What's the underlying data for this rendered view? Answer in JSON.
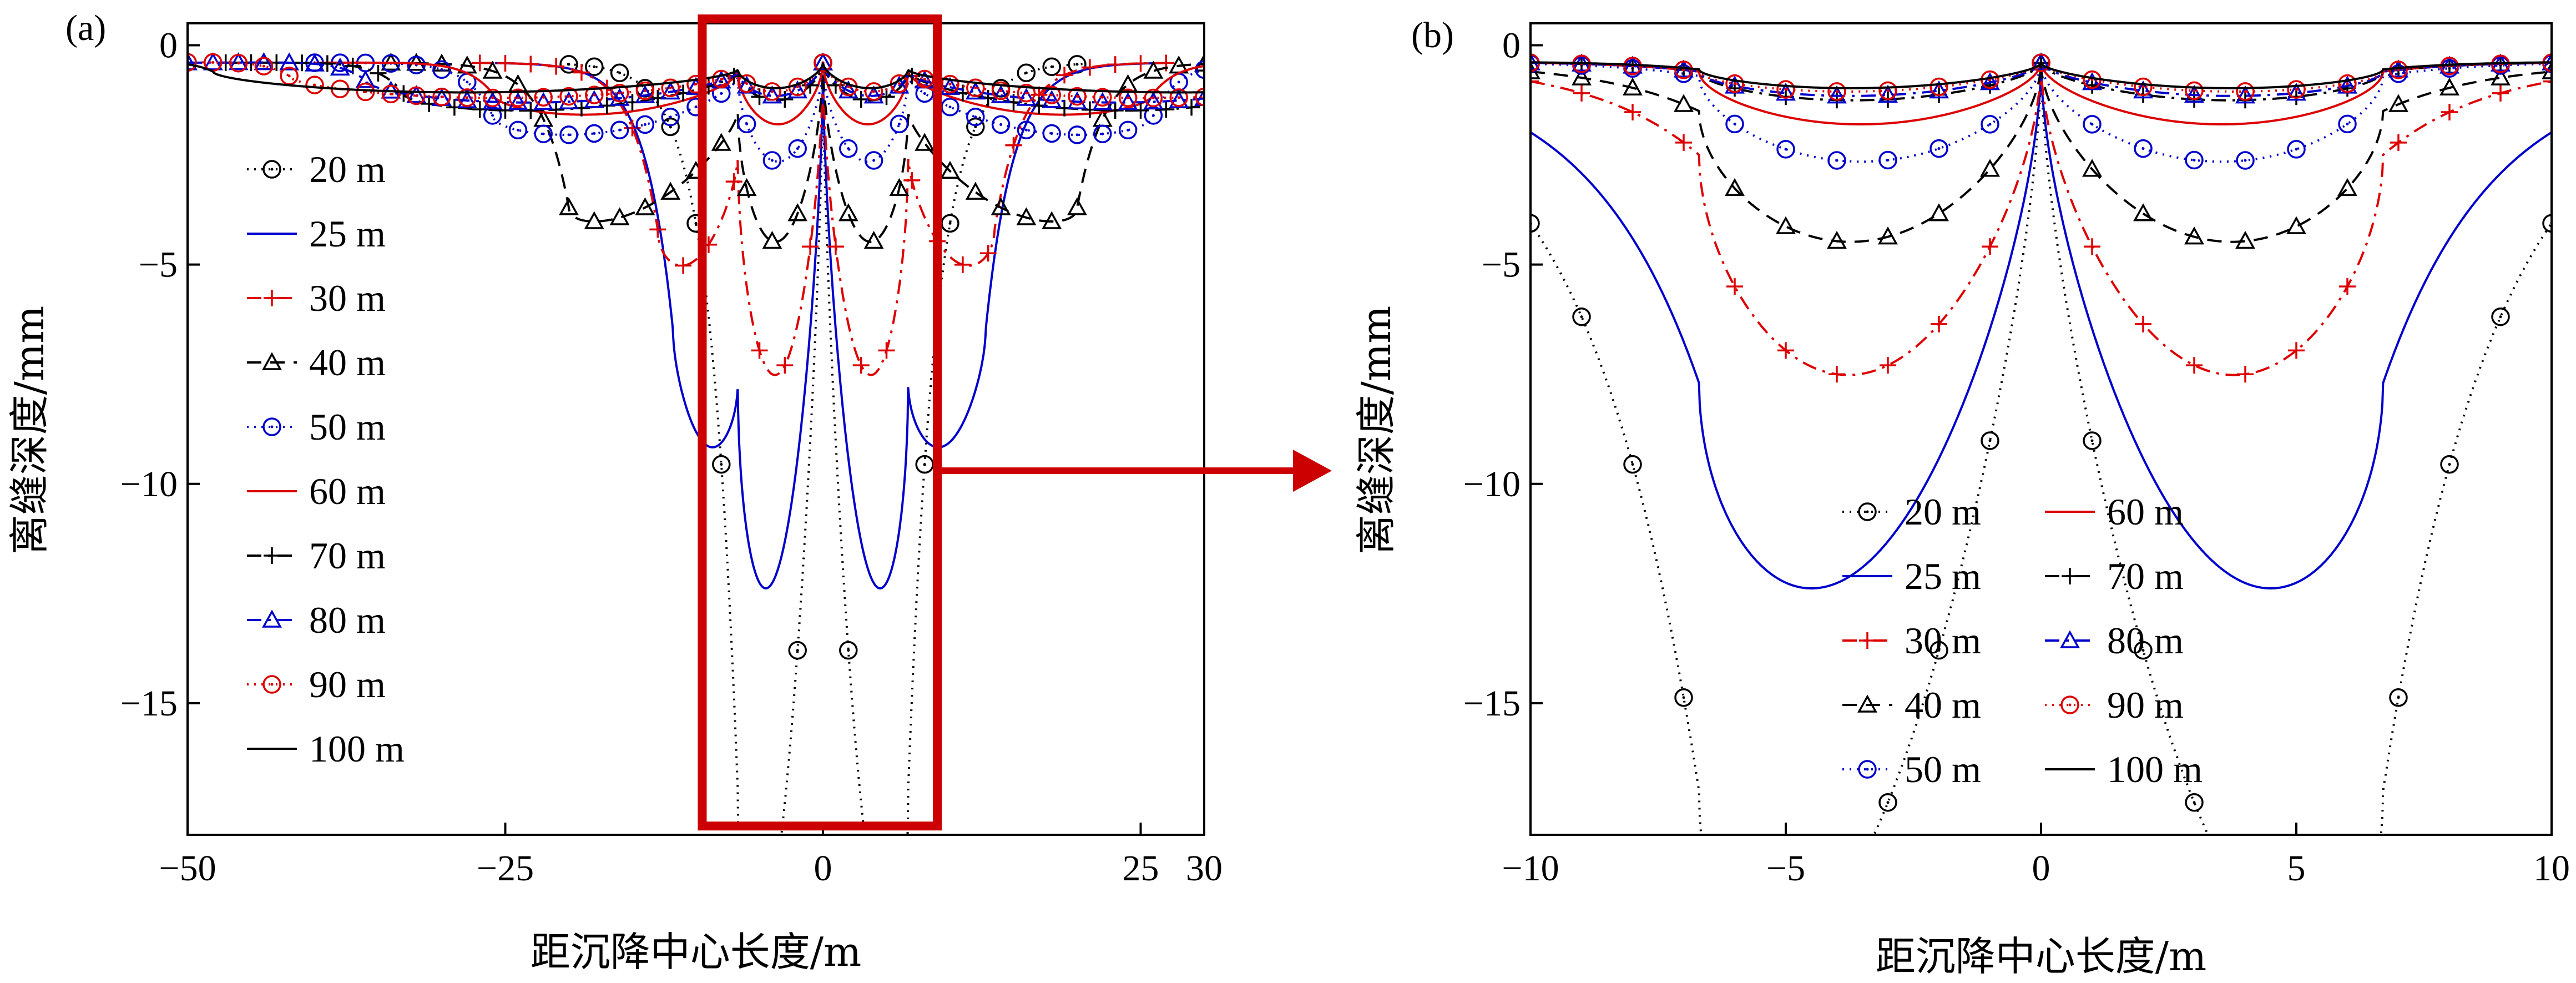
{
  "chart_data": [
    {
      "type": "line",
      "panel_label": "(a)",
      "xlabel": "距沉降中心长度/m",
      "ylabel": "离缝深度/mm",
      "xlim": [
        -50,
        30
      ],
      "ylim": [
        -18,
        0.5
      ],
      "xticks": [
        -50,
        -25,
        0,
        25,
        30
      ],
      "yticks": [
        0,
        -5,
        -10,
        -15
      ],
      "grid": false,
      "legend_position": "left",
      "legend_columns": 1,
      "annotation": "highlight-box",
      "highlight_box": {
        "x": [
          -9.5,
          9
        ],
        "y": [
          -17.8,
          0.6
        ]
      },
      "series": [
        {
          "name": "20 m",
          "color": "#000000",
          "dash": "dot",
          "marker": "circle",
          "centers": [
            -6.7,
            0,
            6.7
          ],
          "depths": [
            17.0,
            0.4,
            17.0
          ],
          "bowls": [
            9.5,
            9.5
          ]
        },
        {
          "name": "25 m",
          "color": "#0000cc",
          "dash": "solid",
          "marker": "none",
          "centers": [
            -11.8,
            -6.7,
            0,
            6.7,
            12.8
          ],
          "depths": [
            6.5,
            7.7,
            0.4,
            7.7,
            6.5
          ],
          "bowls": [
            2.0,
            7.7,
            7.7,
            2.0
          ]
        },
        {
          "name": "30 m",
          "color": "#dd0000",
          "dash": "dashdot",
          "marker": "plus",
          "centers": [
            -13,
            -6.7,
            0,
            6.7,
            13.5
          ],
          "depths": [
            4.2,
            2.5,
            0.4,
            2.5,
            4.2
          ],
          "bowls": [
            1.5,
            6.0,
            6.0,
            1.5
          ]
        },
        {
          "name": "40 m",
          "color": "#000000",
          "dash": "dash",
          "marker": "triangle",
          "centers": [
            -20,
            -6.7,
            0,
            6.7,
            20
          ],
          "depths": [
            3.7,
            1.5,
            0.4,
            1.5,
            3.7
          ],
          "bowls": [
            1.0,
            3.5,
            3.5,
            1.0
          ]
        },
        {
          "name": "50 m",
          "color": "#0000cc",
          "dash": "dot",
          "marker": "circle",
          "centers": [
            -26,
            -6.7,
            0,
            6.7,
            26
          ],
          "depths": [
            1.6,
            0.7,
            0.4,
            0.7,
            1.6
          ],
          "bowls": [
            0.8,
            2.1,
            2.1,
            0.8
          ]
        },
        {
          "name": "60 m",
          "color": "#dd0000",
          "dash": "solid",
          "marker": "none",
          "centers": [
            -26,
            -6.7,
            0,
            6.7,
            26
          ],
          "depths": [
            1.1,
            0.6,
            0.4,
            0.6,
            1.1
          ],
          "bowls": [
            0.7,
            1.3,
            1.3,
            0.7
          ]
        },
        {
          "name": "70 m",
          "color": "#000000",
          "dash": "dashdot",
          "marker": "plus",
          "centers": [
            -33,
            -6.7,
            0,
            6.7,
            33
          ],
          "depths": [
            1.1,
            0.6,
            0.4,
            0.6,
            1.1
          ],
          "bowls": [
            0.6,
            0.75,
            0.75,
            0.6
          ]
        },
        {
          "name": "80 m",
          "color": "#0000cc",
          "dash": "dashdot",
          "marker": "triangle",
          "centers": [
            -36,
            -6.7,
            0,
            6.7,
            36
          ],
          "depths": [
            0.8,
            0.6,
            0.4,
            0.6,
            0.8
          ],
          "bowls": [
            0.6,
            0.65,
            0.65,
            0.6
          ]
        },
        {
          "name": "90 m",
          "color": "#dd0000",
          "dash": "dot",
          "marker": "circle",
          "centers": [
            -42,
            -6.7,
            0,
            6.7,
            42
          ],
          "depths": [
            0.7,
            0.6,
            0.4,
            0.6,
            0.7
          ],
          "bowls": [
            0.55,
            0.55,
            0.55,
            0.55
          ]
        },
        {
          "name": "100 m",
          "color": "#000000",
          "dash": "solid",
          "marker": "none",
          "centers": [
            -48,
            -6.7,
            0,
            6.7,
            48
          ],
          "depths": [
            0.6,
            0.55,
            0.4,
            0.55,
            0.6
          ],
          "bowls": [
            0.5,
            0.5,
            0.5,
            0.5
          ]
        }
      ]
    },
    {
      "type": "line",
      "panel_label": "(b)",
      "xlabel": "距沉降中心长度/m",
      "ylabel": "离缝深度/mm",
      "xlim": [
        -10,
        10
      ],
      "ylim": [
        -18,
        0.5
      ],
      "xticks": [
        -10,
        -5,
        0,
        5,
        10
      ],
      "yticks": [
        0,
        -5,
        -10,
        -15
      ],
      "grid": false,
      "legend_position": "bottom-center",
      "legend_columns": 2,
      "series": [
        {
          "name": "20 m",
          "color": "#000000",
          "dash": "dot",
          "marker": "circle",
          "centers": [
            -6.7,
            0,
            6.7
          ],
          "depths": [
            17.0,
            0.4,
            17.0
          ],
          "bowls": [
            9.5,
            9.5
          ]
        },
        {
          "name": "25 m",
          "color": "#0000cc",
          "dash": "solid",
          "marker": "none",
          "centers": [
            -6.7,
            0,
            6.7
          ],
          "depths": [
            7.7,
            0.4,
            7.7
          ],
          "bowls": [
            7.7,
            7.7
          ]
        },
        {
          "name": "30 m",
          "color": "#dd0000",
          "dash": "dashdot",
          "marker": "plus",
          "centers": [
            -6.7,
            0,
            6.7
          ],
          "depths": [
            2.5,
            0.4,
            2.5
          ],
          "bowls": [
            6.0,
            6.0
          ]
        },
        {
          "name": "40 m",
          "color": "#000000",
          "dash": "dash",
          "marker": "triangle",
          "centers": [
            -6.7,
            0,
            6.7
          ],
          "depths": [
            1.5,
            0.4,
            1.5
          ],
          "bowls": [
            3.5,
            3.5
          ]
        },
        {
          "name": "50 m",
          "color": "#0000cc",
          "dash": "dot",
          "marker": "circle",
          "centers": [
            -6.7,
            0,
            6.7
          ],
          "depths": [
            0.7,
            0.4,
            0.7
          ],
          "bowls": [
            2.1,
            2.1
          ]
        },
        {
          "name": "60 m",
          "color": "#dd0000",
          "dash": "solid",
          "marker": "none",
          "centers": [
            -6.7,
            0,
            6.7
          ],
          "depths": [
            0.6,
            0.4,
            0.6
          ],
          "bowls": [
            1.3,
            1.3
          ]
        },
        {
          "name": "70 m",
          "color": "#000000",
          "dash": "dashdot",
          "marker": "plus",
          "centers": [
            -6.7,
            0,
            6.7
          ],
          "depths": [
            0.6,
            0.4,
            0.6
          ],
          "bowls": [
            0.75,
            0.75
          ]
        },
        {
          "name": "80 m",
          "color": "#0000cc",
          "dash": "dashdot",
          "marker": "triangle",
          "centers": [
            -6.7,
            0,
            6.7
          ],
          "depths": [
            0.6,
            0.4,
            0.6
          ],
          "bowls": [
            0.65,
            0.65
          ]
        },
        {
          "name": "90 m",
          "color": "#dd0000",
          "dash": "dot",
          "marker": "circle",
          "centers": [
            -6.7,
            0,
            6.7
          ],
          "depths": [
            0.6,
            0.4,
            0.6
          ],
          "bowls": [
            0.55,
            0.55
          ]
        },
        {
          "name": "100 m",
          "color": "#000000",
          "dash": "solid",
          "marker": "none",
          "centers": [
            -6.7,
            0,
            6.7
          ],
          "depths": [
            0.55,
            0.4,
            0.55
          ],
          "bowls": [
            0.5,
            0.5
          ]
        }
      ]
    }
  ]
}
